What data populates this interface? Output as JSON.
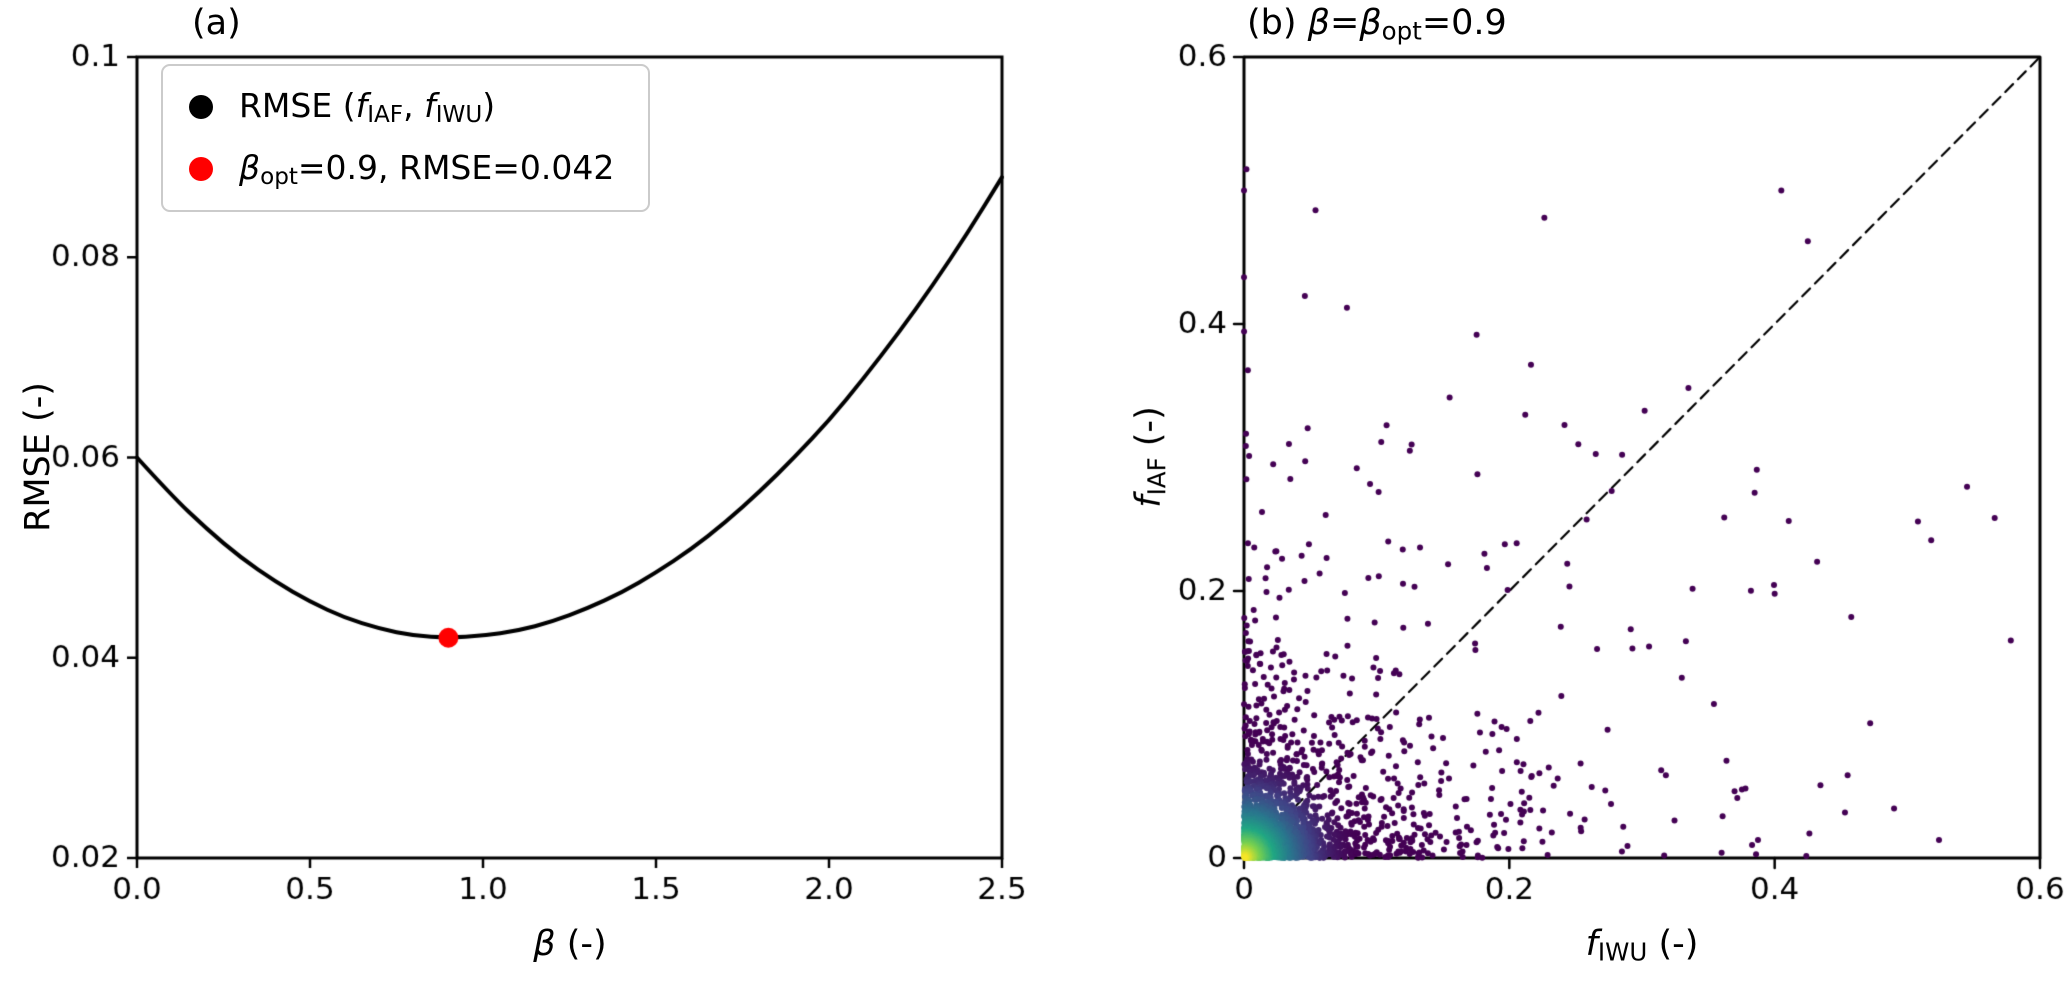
{
  "figure": {
    "background": "#ffffff",
    "frame_color": "#000000"
  },
  "chart_data": [
    {
      "type": "line",
      "panel": "a",
      "title_text": "(a)",
      "title_segments": [
        {
          "t": "(a)",
          "s": "n"
        }
      ],
      "xlabel": "β (-)",
      "xlabel_segments": [
        {
          "t": "β",
          "s": "i"
        },
        {
          "t": " (-)",
          "s": "n"
        }
      ],
      "ylabel": "RMSE (-)",
      "ylabel_segments": [
        {
          "t": "RMSE (-)",
          "s": "n"
        }
      ],
      "xlim": [
        0.0,
        2.5
      ],
      "ylim": [
        0.02,
        0.1
      ],
      "xticks": {
        "values": [
          0.0,
          0.5,
          1.0,
          1.5,
          2.0,
          2.5
        ],
        "labels": [
          "0.0",
          "0.5",
          "1.0",
          "1.5",
          "2.0",
          "2.5"
        ]
      },
      "yticks": {
        "values": [
          0.02,
          0.04,
          0.06,
          0.08,
          0.1
        ],
        "labels": [
          "0.02",
          "0.04",
          "0.06",
          "0.08",
          "0.1"
        ]
      },
      "line_color": "#000000",
      "line_width": 4,
      "x": [
        0.0,
        0.1,
        0.2,
        0.3,
        0.4,
        0.5,
        0.6,
        0.7,
        0.8,
        0.9,
        1.0,
        1.1,
        1.2,
        1.3,
        1.4,
        1.5,
        1.6,
        1.7,
        1.8,
        1.9,
        2.0,
        2.1,
        2.2,
        2.3,
        2.4,
        2.5
      ],
      "y": [
        0.06,
        0.0562,
        0.0529,
        0.05,
        0.0476,
        0.0456,
        0.044,
        0.0429,
        0.0422,
        0.042,
        0.0422,
        0.0427,
        0.0436,
        0.0449,
        0.0465,
        0.0485,
        0.0508,
        0.0535,
        0.0566,
        0.06,
        0.0637,
        0.0679,
        0.0724,
        0.0772,
        0.0824,
        0.088
      ],
      "optimum": {
        "x": 0.9,
        "y": 0.042,
        "color": "#ff0000",
        "radius": 10
      },
      "legend": [
        {
          "label": "RMSE (f_IAF, f_IWU)",
          "marker_color": "#000000",
          "segments": [
            {
              "t": "RMSE (",
              "s": "n"
            },
            {
              "t": "f",
              "s": "i"
            },
            {
              "t": "IAF",
              "s": "s"
            },
            {
              "t": ", ",
              "s": "n"
            },
            {
              "t": "f",
              "s": "i"
            },
            {
              "t": "IWU",
              "s": "s"
            },
            {
              "t": ")",
              "s": "n"
            }
          ]
        },
        {
          "label": "β_opt=0.9, RMSE=0.042",
          "marker_color": "#ff0000",
          "segments": [
            {
              "t": "β",
              "s": "i"
            },
            {
              "t": "opt",
              "s": "s"
            },
            {
              "t": "=0.9, RMSE=0.042",
              "s": "n"
            }
          ]
        }
      ]
    },
    {
      "type": "scatter",
      "panel": "b",
      "title_text": "(b) β=β_opt=0.9",
      "title_segments": [
        {
          "t": "(b) ",
          "s": "n"
        },
        {
          "t": "β",
          "s": "i"
        },
        {
          "t": "=",
          "s": "n"
        },
        {
          "t": "β",
          "s": "i"
        },
        {
          "t": "opt",
          "s": "s"
        },
        {
          "t": "=0.9",
          "s": "n"
        }
      ],
      "xlabel": "f_IWU (-)",
      "xlabel_segments": [
        {
          "t": "f",
          "s": "i"
        },
        {
          "t": "IWU",
          "s": "s"
        },
        {
          "t": " (-)",
          "s": "n"
        }
      ],
      "ylabel": "f_IAF (-)",
      "ylabel_segments": [
        {
          "t": "f",
          "s": "i"
        },
        {
          "t": "IAF",
          "s": "s"
        },
        {
          "t": " (-)",
          "s": "n"
        }
      ],
      "xlim": [
        0.0,
        0.6
      ],
      "ylim": [
        0.0,
        0.6
      ],
      "xticks": {
        "values": [
          0.0,
          0.2,
          0.4,
          0.6
        ],
        "labels": [
          "0",
          "0.2",
          "0.4",
          "0.6"
        ]
      },
      "yticks": {
        "values": [
          0.0,
          0.2,
          0.4,
          0.6
        ],
        "labels": [
          "0",
          "0.2",
          "0.4",
          "0.6"
        ]
      },
      "identity_line": {
        "x": [
          0.0,
          0.6
        ],
        "y": [
          0.0,
          0.6
        ],
        "style": "dashed",
        "color": "#000000",
        "width": 2.2
      },
      "marker_radius": 3.0,
      "colormap": {
        "name": "viridis",
        "stops": [
          [
            0.0,
            "#440154"
          ],
          [
            0.2,
            "#414487"
          ],
          [
            0.4,
            "#2a788e"
          ],
          [
            0.6,
            "#22a884"
          ],
          [
            0.8,
            "#7ad151"
          ],
          [
            1.0,
            "#fde725"
          ]
        ],
        "density_radius": 0.09,
        "density_power": 2
      },
      "generator": {
        "seed": 421,
        "clip_max": 0.595,
        "components": [
          {
            "n": 1500,
            "type": "exp",
            "sx": 0.02,
            "sy": 0.016
          },
          {
            "n": 700,
            "type": "exp",
            "sx": 0.055,
            "sy": 0.042
          },
          {
            "n": 230,
            "type": "exp",
            "sx": 0.15,
            "sy": 0.105
          },
          {
            "n": 48,
            "type": "axis_y",
            "sy": 0.105
          },
          {
            "n": 42,
            "type": "axis_x",
            "sx": 0.095
          }
        ]
      },
      "highlight_points": [
        [
          0.0,
          0.5
        ],
        [
          0.0,
          0.435
        ],
        [
          0.405,
          0.5
        ],
        [
          0.425,
          0.462
        ],
        [
          0.335,
          0.352
        ],
        [
          0.302,
          0.335
        ],
        [
          0.545,
          0.278
        ],
        [
          0.508,
          0.252
        ],
        [
          0.578,
          0.163
        ],
        [
          0.472,
          0.101
        ],
        [
          0.455,
          0.062
        ],
        [
          0.49,
          0.037
        ],
        [
          0.36,
          0.004
        ],
        [
          0.378,
          0.052
        ],
        [
          0.318,
          0.062
        ],
        [
          0.33,
          0.135
        ],
        [
          0.4,
          0.198
        ],
        [
          0.432,
          0.222
        ],
        [
          0.518,
          0.238
        ],
        [
          0.362,
          0.255
        ],
        [
          0.285,
          0.302
        ],
        [
          0.252,
          0.31
        ],
        [
          0.212,
          0.332
        ],
        [
          0.155,
          0.345
        ],
        [
          0.125,
          0.305
        ],
        [
          0.085,
          0.292
        ],
        [
          0.048,
          0.322
        ],
        [
          0.022,
          0.295
        ]
      ]
    }
  ]
}
